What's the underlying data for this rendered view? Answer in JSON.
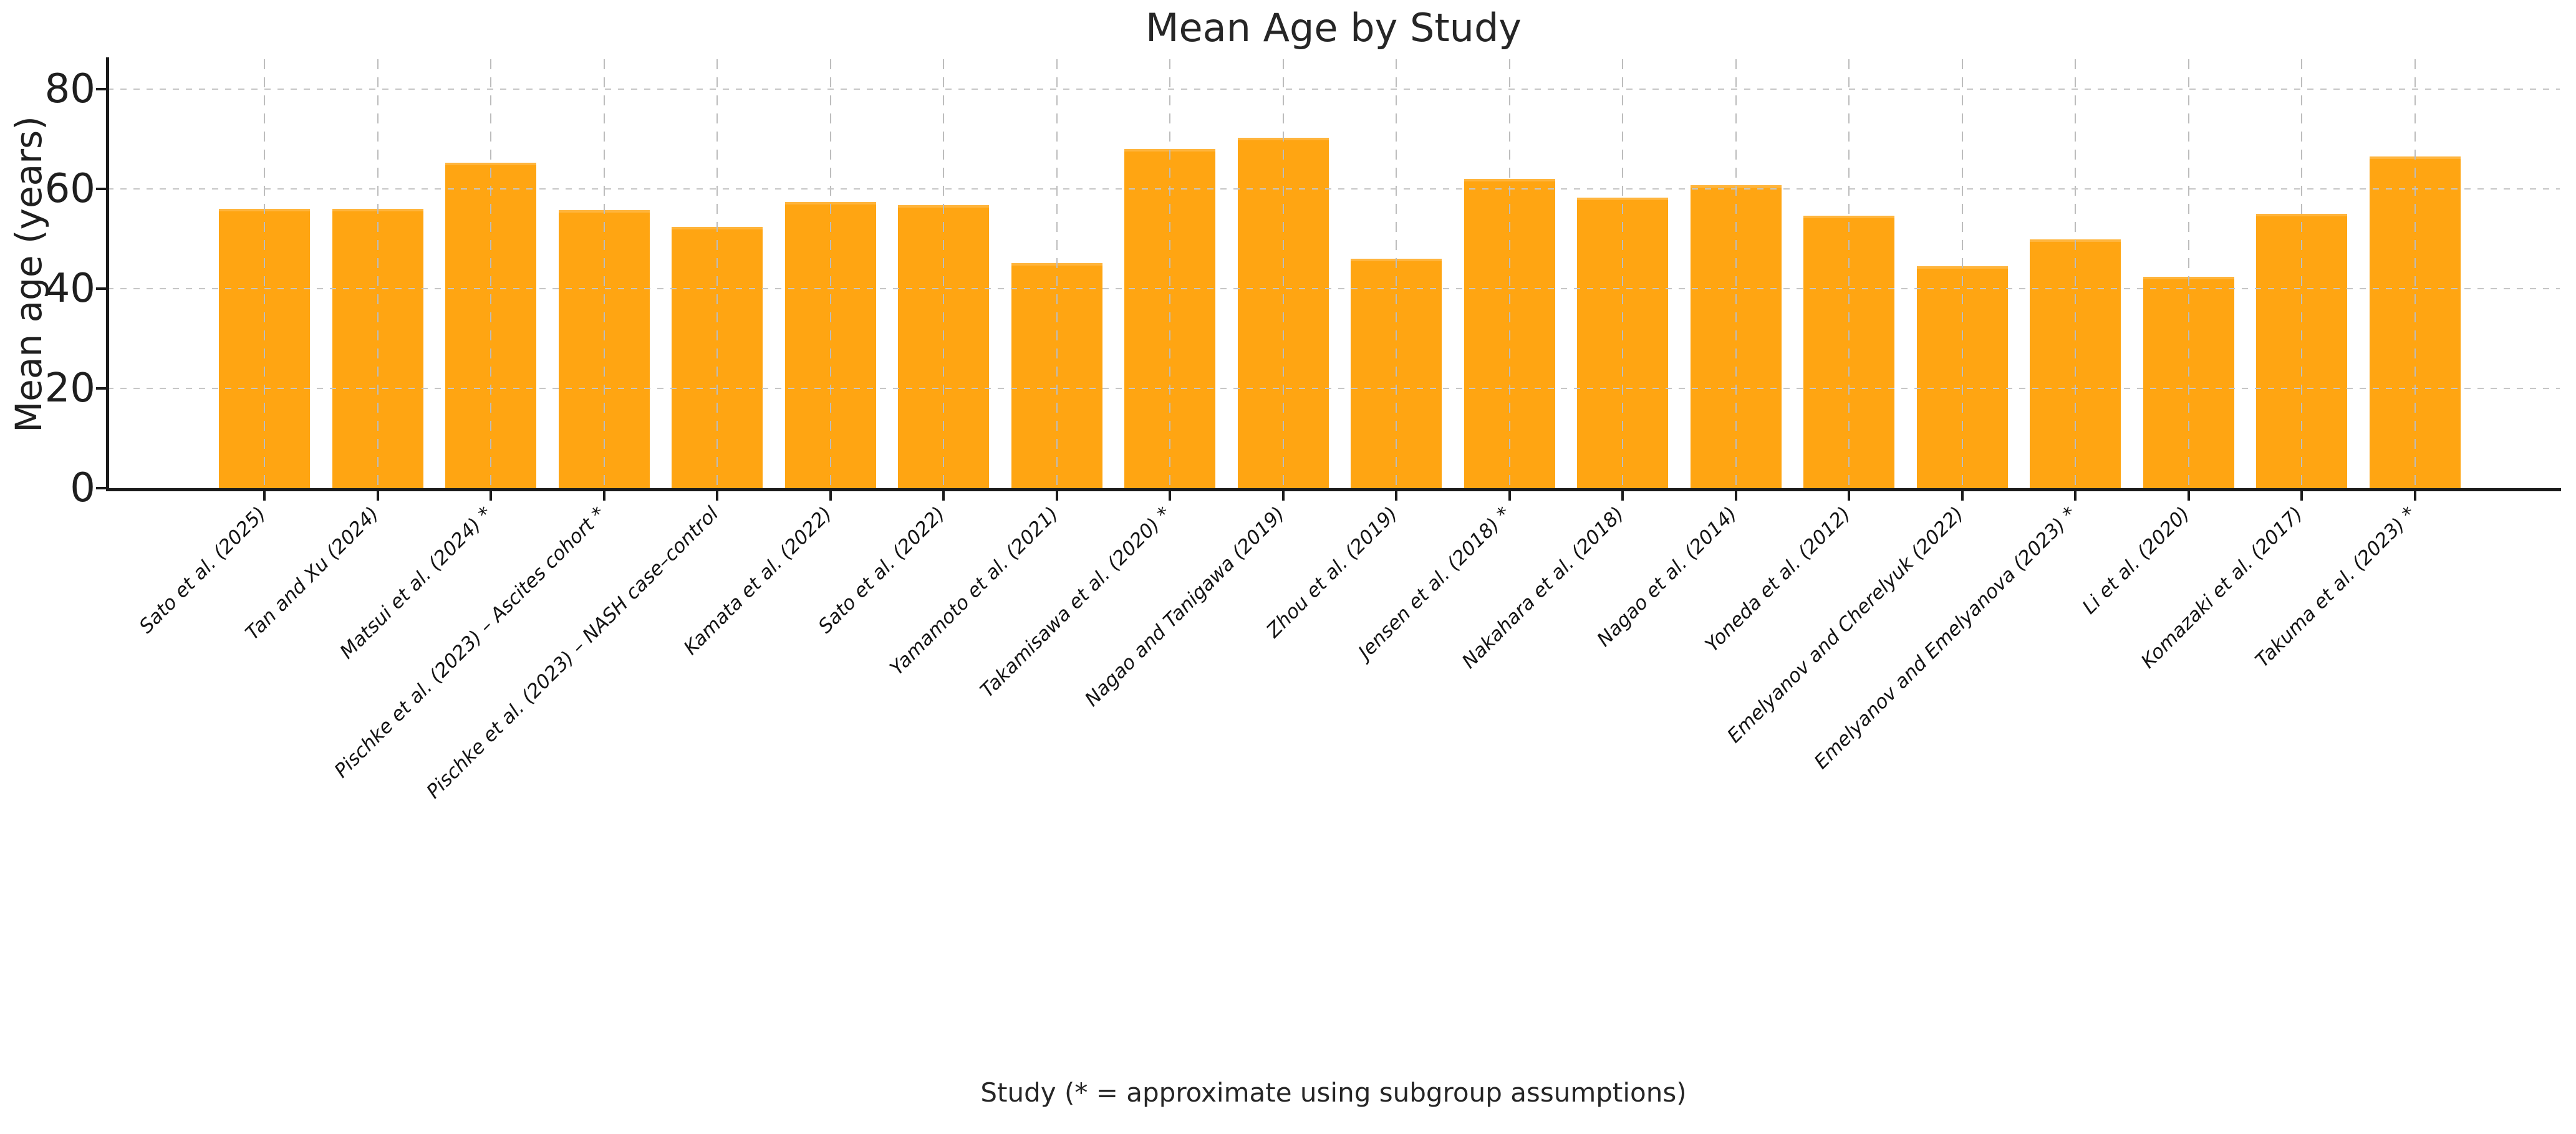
{
  "chart_data": {
    "type": "bar",
    "title": "Mean Age by Study",
    "xlabel": "Study (* = approximate using subgroup assumptions)",
    "ylabel": "Mean age (years)",
    "categories": [
      "Sato et al. (2025)",
      "Tan and Xu (2024)",
      "Matsui et al. (2024) *",
      "Pischke et al. (2023) – Ascites cohort *",
      "Pischke et al. (2023) – NASH case–control",
      "Kamata et al. (2022)",
      "Sato et al. (2022)",
      "Yamamoto et al. (2021)",
      "Takamisawa et al. (2020) *",
      "Nagao and Tanigawa (2019)",
      "Zhou et al. (2019)",
      "Jensen et al. (2018) *",
      "Nakahara et al. (2018)",
      "Nagao et al. (2014)",
      "Yoneda et al. (2012)",
      "Emelyanov and Cherelyuk (2022)",
      "Emelyanov and Emelyanova (2023) *",
      "Li et al. (2020)",
      "Komazaki et al. (2017)",
      "Takuma et al. (2023) *"
    ],
    "values": [
      56.0,
      56.0,
      65.2,
      55.8,
      52.4,
      57.4,
      56.8,
      45.1,
      68.0,
      70.2,
      46.0,
      62.0,
      58.2,
      60.7,
      54.6,
      44.5,
      49.9,
      42.4,
      55.0,
      66.5
    ],
    "yticks": [
      0,
      20,
      40,
      60,
      80
    ],
    "ylim": [
      0,
      86
    ],
    "grid": true,
    "legend": null,
    "bar_color": "#ffa512",
    "bar_edge_color": "#ffb53d",
    "gridline_color": "#c6c6c6",
    "axis_color": "#1a1a1a",
    "text_color": "#262626"
  }
}
